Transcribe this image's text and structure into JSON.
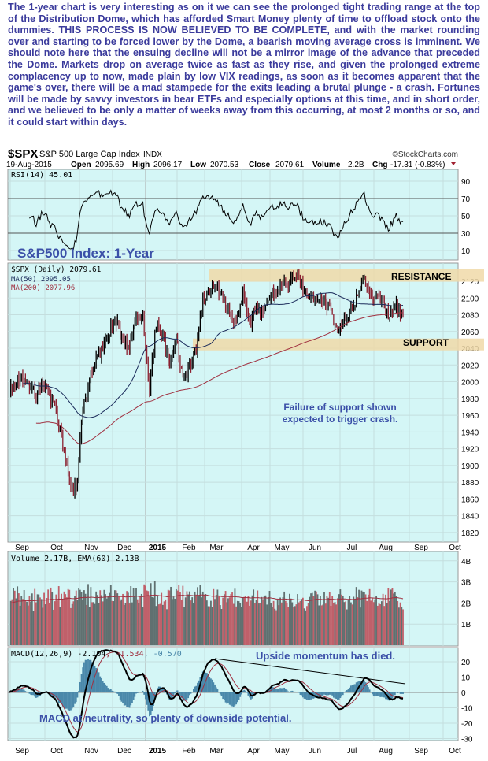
{
  "article": {
    "paragraph": "The 1-year chart is very interesting as on it we can see the prolonged tight trading range at the top of the Distribution Dome, which has afforded Smart Money plenty of time to offload stock onto the dummies. THIS PROCESS IS NOW BELIEVED TO BE COMPLETE, and with the market rounding over and starting to be forced lower by the Dome, a bearish moving average cross is imminent. We should note here that the ensuing decline will not be a mirror image of the advance that preceded the Dome. Markets drop on average twice as fast as they rise, and given the prolonged extreme complacency up to now, made plain by low VIX readings, as soon as it becomes apparent that the game's over, there will be a mad stampede for the exits leading a brutal plunge - a crash. Fortunes will be made by savvy investors in bear ETFs and especially options at this time, and in short order, and we believed to be only a matter of weeks away from this occurring, at most 2 months or so, and it could start within days."
  },
  "header": {
    "symbol": "$SPX",
    "name": "S&P 500 Large Cap Index",
    "exchange": "INDX",
    "watermark": "©StockCharts.com",
    "date": "19-Aug-2015",
    "open_label": "Open",
    "open": "2095.69",
    "high_label": "High",
    "high": "2096.17",
    "low_label": "Low",
    "low": "2070.53",
    "close_label": "Close",
    "close": "2079.61",
    "volume_label": "Volume",
    "volume": "2.2B",
    "chg_label": "Chg",
    "chg": "-17.31 (-0.83%)"
  },
  "colors": {
    "panel": "#d4f6f6",
    "up": "#000000",
    "down": "#8b2030",
    "ma50": "#1a2a5a",
    "ma200": "#a03040",
    "text": "#3b3b9c",
    "band": "#f0d9a8",
    "vol_down": "#c0606a",
    "vol_up": "#607070",
    "macd_hist": "#4a88aa"
  },
  "chart_data": [
    {
      "type": "line",
      "title": "RSI(14) 45.01",
      "legend": "RSI(14) 45.01",
      "yticks": [
        90,
        70,
        50,
        30,
        10
      ],
      "ylim": [
        0,
        100
      ]
    },
    {
      "type": "line",
      "title": "S&P500 Index: 1-Year",
      "legend": [
        "$SPX (Daily) 2079.61",
        "MA(50) 2095.05",
        "MA(200) 2077.96"
      ],
      "yticks": [
        2120,
        2100,
        2080,
        2060,
        2040,
        2020,
        2000,
        1980,
        1960,
        1940,
        1920,
        1900,
        1880,
        1860,
        1840,
        1820
      ],
      "ylim": [
        1815,
        2135
      ],
      "weekly_close": [
        1990,
        2000,
        2005,
        1995,
        1985,
        1995,
        1985,
        1965,
        1925,
        1880,
        1870,
        1965,
        2000,
        2030,
        2040,
        2060,
        2070,
        2050,
        2040,
        2075,
        2080,
        1990,
        2070,
        2055,
        2020,
        2050,
        2000,
        2020,
        2040,
        2095,
        2110,
        2115,
        2100,
        2085,
        2070,
        2105,
        2065,
        2090,
        2080,
        2100,
        2110,
        2115,
        2120,
        2125,
        2110,
        2105,
        2100,
        2095,
        2090,
        2060,
        2075,
        2080,
        2100,
        2125,
        2110,
        2100,
        2090,
        2080,
        2090,
        2080
      ],
      "annotations": {
        "resistance": "RESISTANCE",
        "resistance_level": 2127,
        "support": "SUPPORT",
        "support_level": 2045,
        "note_line1": "Failure of support shown",
        "note_line2": "expected to trigger crash."
      }
    },
    {
      "type": "bar",
      "title": "Volume",
      "legend": "Volume 2.17B, EMA(60) 2.13B",
      "yticks": [
        "4B",
        "3B",
        "2B",
        "1B"
      ],
      "ylim": [
        0,
        4.4
      ]
    },
    {
      "type": "line",
      "title": "MACD",
      "legend_main": "MACD(12,26,9) -2.104",
      "legend_signal": ", -1.534",
      "legend_hist": ", -0.570",
      "yticks": [
        20,
        10,
        0,
        -10,
        -20,
        -30
      ],
      "ylim": [
        -32,
        28
      ],
      "annotations": {
        "top": "Upside momentum has died.",
        "bottom": "MACD at neutrality, so plenty of downside potential."
      }
    }
  ],
  "xaxis": [
    "Sep",
    "Oct",
    "Nov",
    "Dec",
    "2015",
    "Feb",
    "Mar",
    "Apr",
    "May",
    "Jun",
    "Jul",
    "Aug",
    "Sep",
    "Oct"
  ]
}
